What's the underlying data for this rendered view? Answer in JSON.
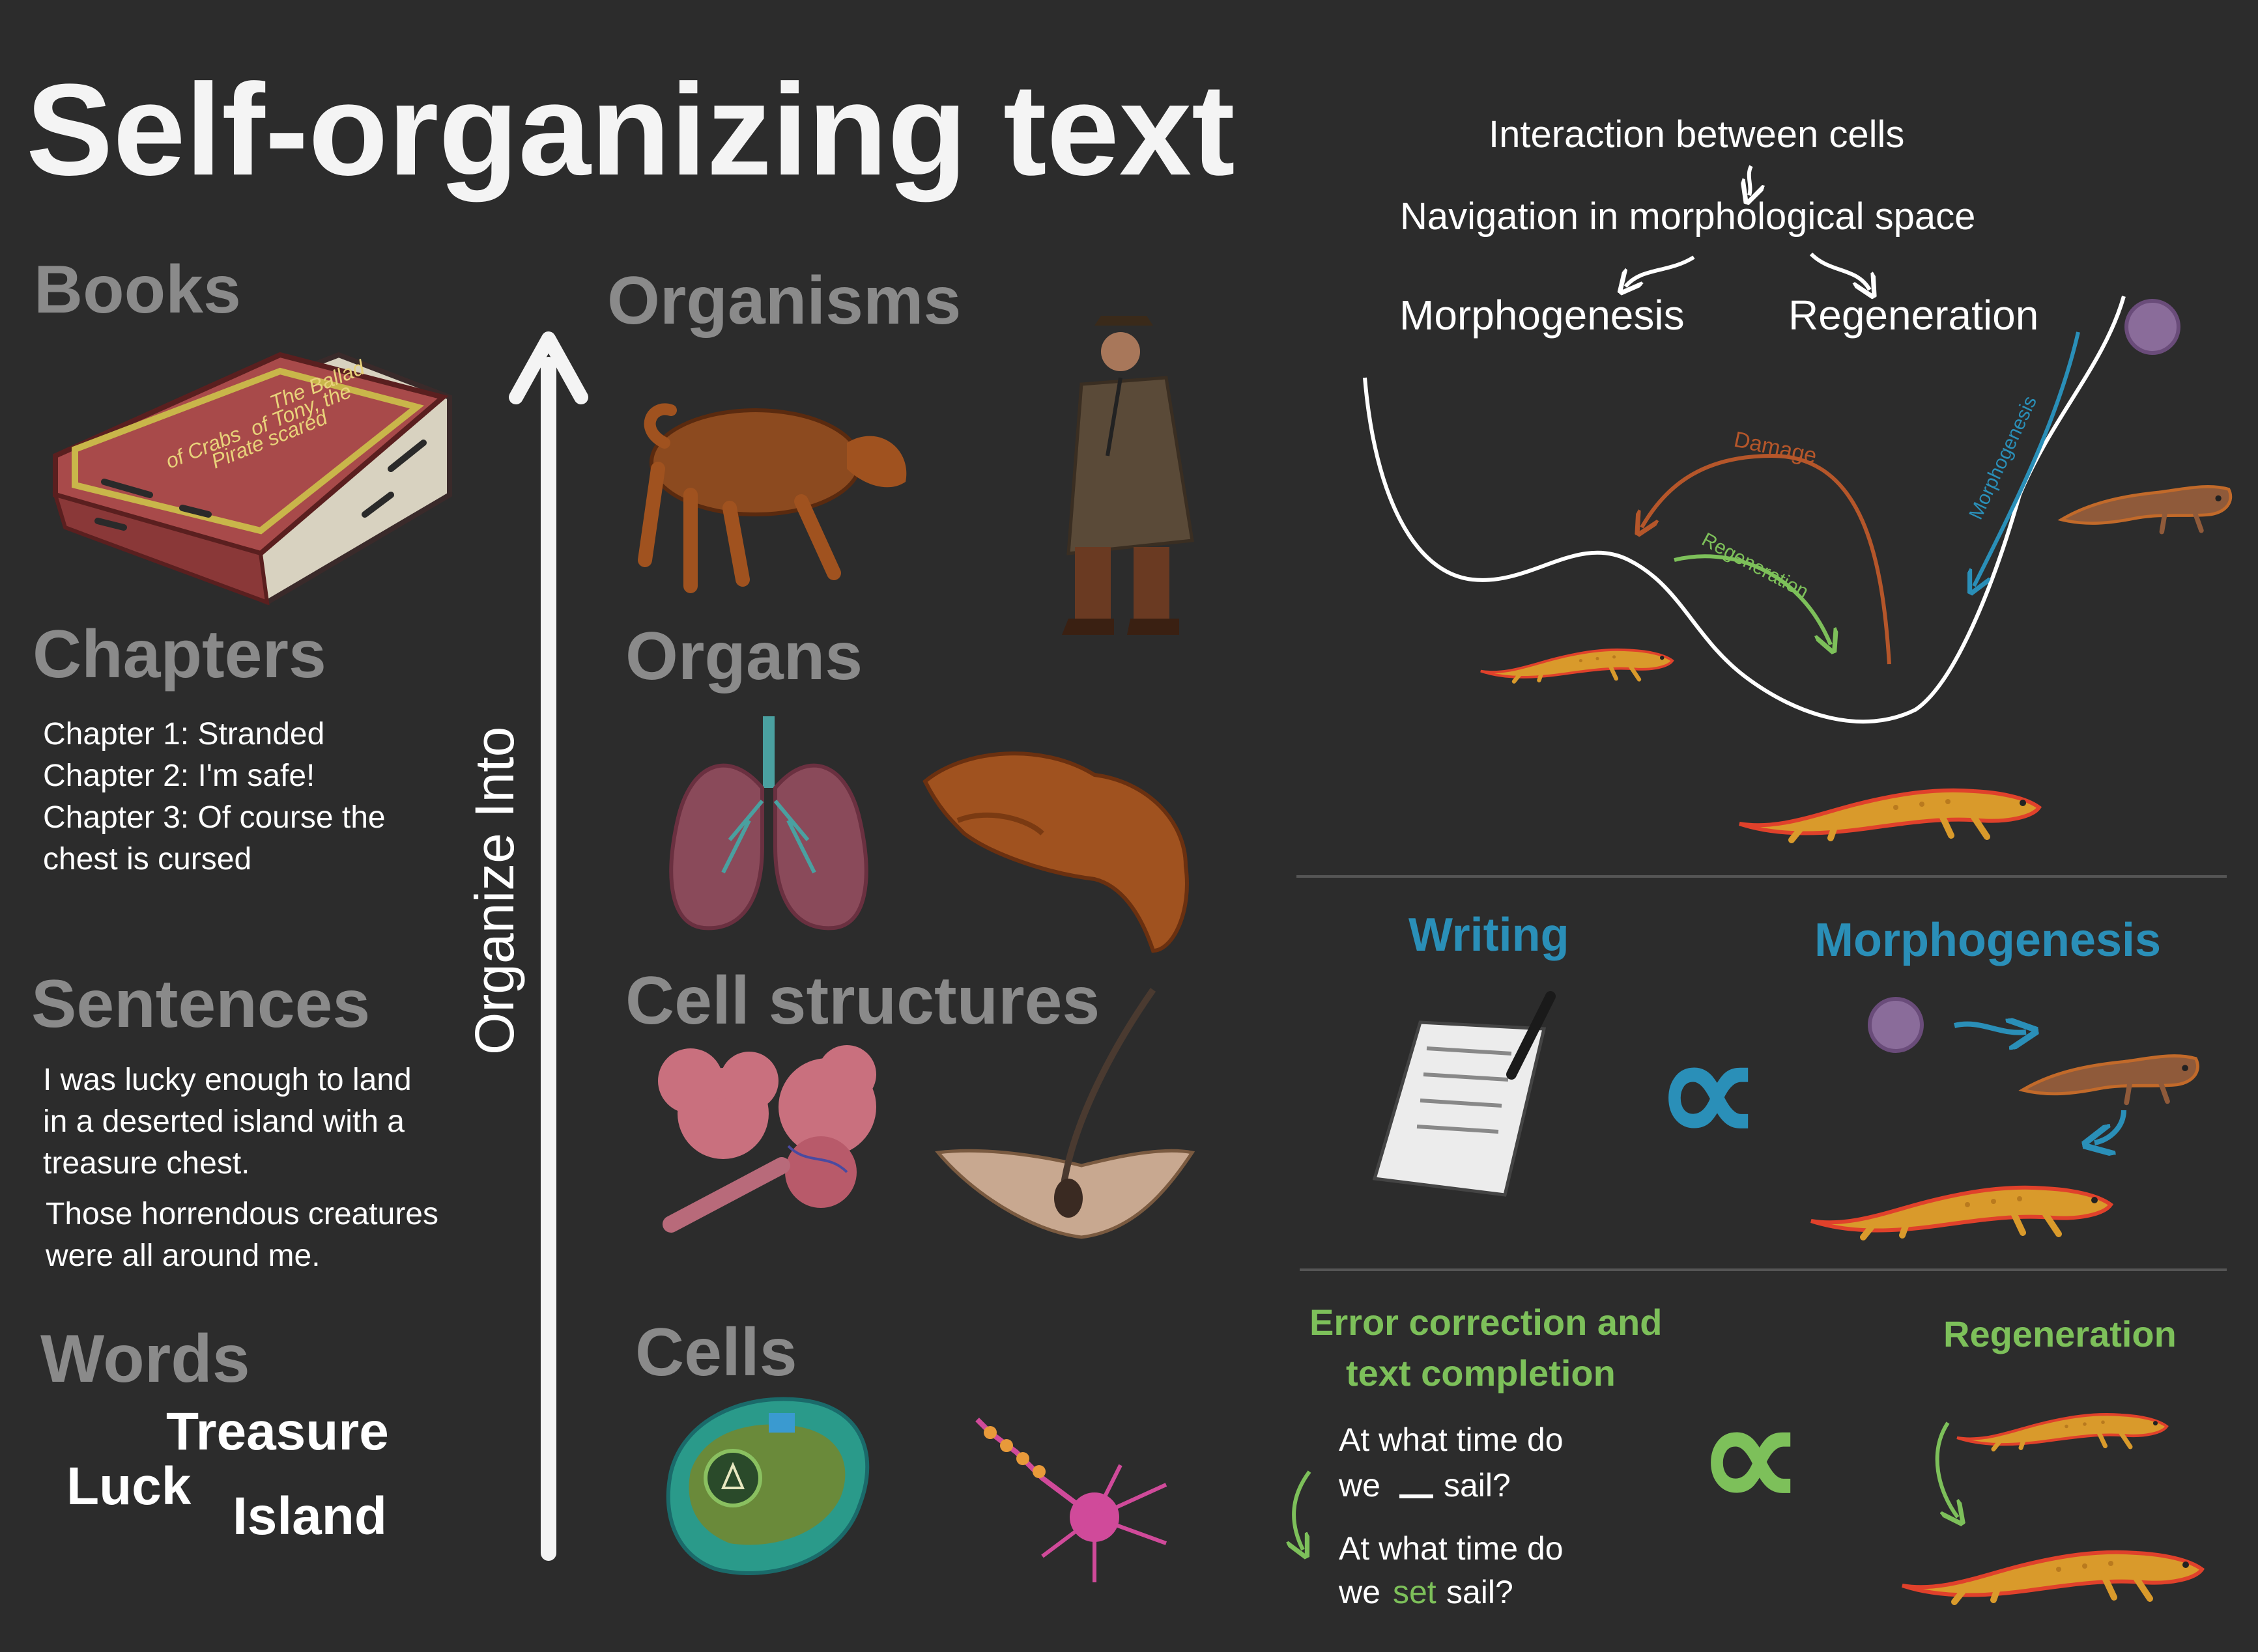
{
  "title": "Self-organizing text",
  "text_hierarchy": {
    "books": {
      "heading": "Books",
      "book_cover_text": [
        "The Ballad",
        "of Tony, the",
        "Pirate scared",
        "of Crabs"
      ]
    },
    "chapters": {
      "heading": "Chapters",
      "lines": [
        "Chapter 1: Stranded",
        "Chapter 2: I'm safe!",
        "Chapter 3: Of course the",
        "chest is cursed"
      ]
    },
    "sentences": {
      "heading": "Sentences",
      "lines_a": [
        "I was lucky enough to land",
        "in a deserted island with a",
        "treasure chest."
      ],
      "lines_b": [
        "Those horrendous creatures",
        "were all around me."
      ]
    },
    "words": {
      "heading": "Words",
      "items": [
        "Treasure",
        "Luck",
        "Island"
      ]
    }
  },
  "arrow_label": "Organize Into",
  "bio_hierarchy": {
    "organisms": "Organisms",
    "organs": "Organs",
    "cell_structures": "Cell structures",
    "cells": "Cells"
  },
  "flow": {
    "top": "Interaction between cells",
    "middle": "Navigation in morphological space",
    "left": "Morphogenesis",
    "right": "Regeneration"
  },
  "landscape_labels": {
    "damage": "Damage",
    "regeneration": "Regeneration",
    "morphogenesis": "Morphogenesis"
  },
  "analogy_1": {
    "left": "Writing",
    "right": "Morphogenesis",
    "symbol": "∝"
  },
  "analogy_2": {
    "left_title_1": "Error correction and",
    "left_title_2": "text completion",
    "q1_line1": "At what time do",
    "q1_line2_a": "we",
    "q1_line2_b": "sail?",
    "q2_line1": "At what time do",
    "q2_line2_a": "we",
    "q2_line2_word": "set",
    "q2_line2_b": "sail?",
    "right": "Regeneration",
    "symbol": "∝"
  },
  "colors": {
    "background": "#2c2c2c",
    "heading_gray": "#8a8a8a",
    "white": "#ffffff",
    "blue": "#2a8fb8",
    "green": "#7dc05a",
    "damage_brown": "#b5562a",
    "salamander_orange": "#d99a2b",
    "salamander_red": "#e0412b",
    "sphere_purple": "#8a6c9a"
  }
}
